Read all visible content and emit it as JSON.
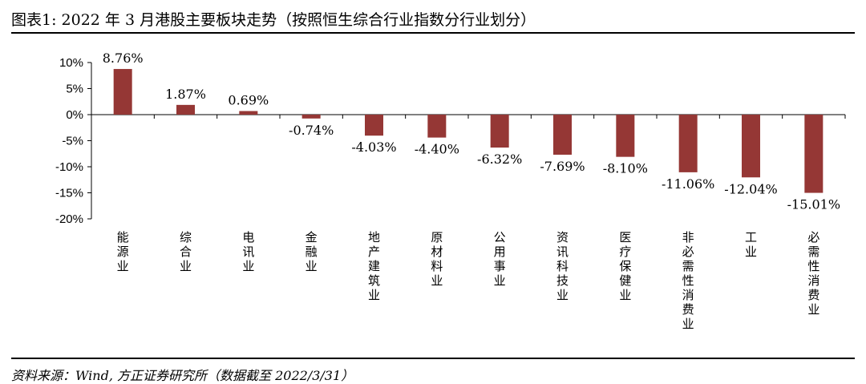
{
  "header": {
    "title": "图表1:  2022 年 3 月港股主要板块走势（按照恒生综合行业指数分行业划分）"
  },
  "footer": {
    "source": "资料来源：Wind, 方正证券研究所（数据截至 2022/3/31）"
  },
  "colors": {
    "bar": "#953735",
    "axis": "#000000"
  },
  "chart_data": {
    "type": "bar",
    "categories": [
      "能源业",
      "综合业",
      "电讯业",
      "金融业",
      "地产建筑业",
      "原材料业",
      "公用事业",
      "资讯科技业",
      "医疗保健业",
      "非必需性消费业",
      "工业",
      "必需性消费业"
    ],
    "values": [
      8.76,
      1.87,
      0.69,
      -0.74,
      -4.03,
      -4.4,
      -6.32,
      -7.69,
      -8.1,
      -11.06,
      -12.04,
      -15.01
    ],
    "data_labels": [
      "8.76%",
      "1.87%",
      "0.69%",
      "-0.74%",
      "-4.03%",
      "-4.40%",
      "-6.32%",
      "-7.69%",
      "-8.10%",
      "-11.06%",
      "-12.04%",
      "-15.01%"
    ],
    "yticks": [
      10,
      5,
      0,
      -5,
      -10,
      -15,
      -20
    ],
    "ytick_labels": [
      "10%",
      "5%",
      "0%",
      "-5%",
      "-10%",
      "-15%",
      "-20%"
    ],
    "ylim": [
      -20,
      10
    ],
    "title": "",
    "xlabel": "",
    "ylabel": "",
    "grid": false,
    "legend": false
  }
}
